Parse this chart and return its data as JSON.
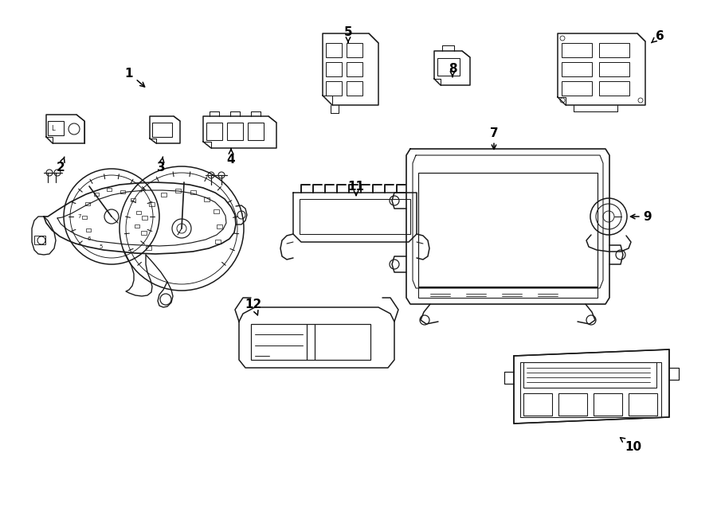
{
  "bg_color": "#ffffff",
  "line_color": "#1a1a1a",
  "lw": 1.1,
  "fig_w": 9.0,
  "fig_h": 6.62,
  "dpi": 100
}
